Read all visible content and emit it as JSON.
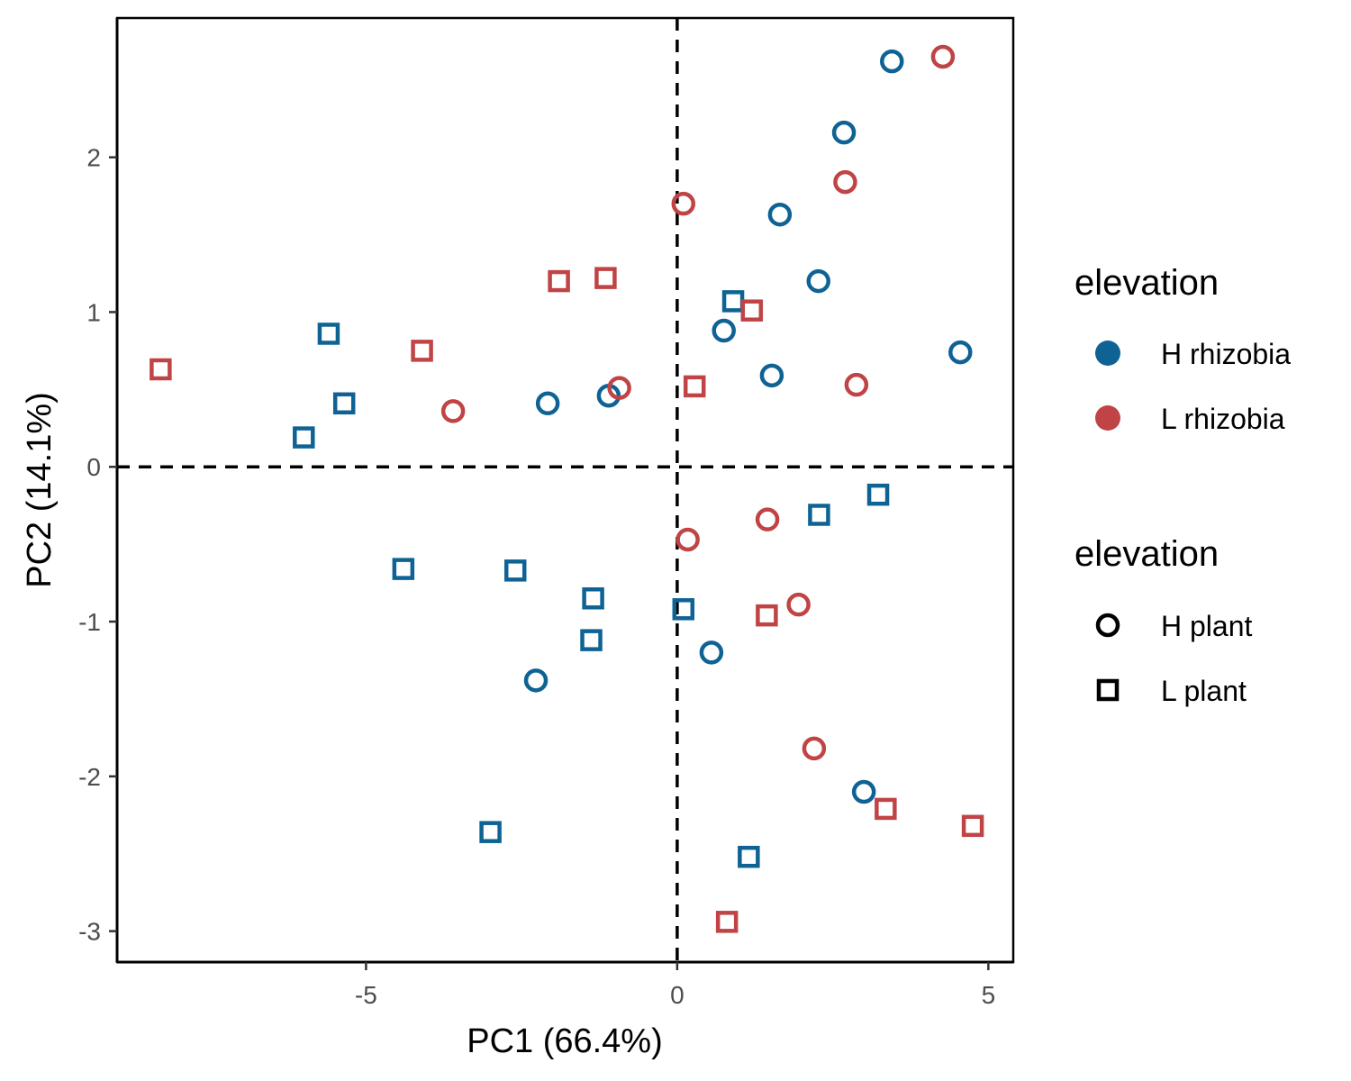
{
  "chart_data": {
    "type": "scatter",
    "xlabel": "PC1 (66.4%)",
    "ylabel": "PC2 (14.1%)",
    "xlim": [
      -9.0,
      5.4
    ],
    "ylim": [
      -3.2,
      2.9
    ],
    "x_ticks": [
      -5,
      0,
      5
    ],
    "y_ticks": [
      -3,
      -2,
      -1,
      0,
      1,
      2
    ],
    "reference_lines": {
      "x": 0,
      "y": 0,
      "style": "dashed"
    },
    "grid": false,
    "legend_placement": "right",
    "colors": {
      "H rhizobia": "#0f6394",
      "L rhizobia": "#c04446"
    },
    "color_legend": {
      "title": "elevation",
      "entries": [
        "H rhizobia",
        "L rhizobia"
      ]
    },
    "shape_legend": {
      "title": "elevation",
      "entries": [
        {
          "label": "H plant",
          "shape": "circle"
        },
        {
          "label": "L plant",
          "shape": "square"
        }
      ]
    },
    "series": [
      {
        "rhizobia": "H rhizobia",
        "plant": "H plant",
        "shape": "circle",
        "color": "#0f6394",
        "points": [
          [
            3.45,
            2.62
          ],
          [
            2.68,
            2.16
          ],
          [
            1.65,
            1.63
          ],
          [
            2.27,
            1.2
          ],
          [
            0.75,
            0.88
          ],
          [
            1.52,
            0.59
          ],
          [
            4.55,
            0.74
          ],
          [
            -2.08,
            0.41
          ],
          [
            -1.1,
            0.46
          ],
          [
            0.55,
            -1.2
          ],
          [
            -2.27,
            -1.38
          ],
          [
            3.0,
            -2.1
          ]
        ]
      },
      {
        "rhizobia": "H rhizobia",
        "plant": "L plant",
        "shape": "square",
        "color": "#0f6394",
        "points": [
          [
            -5.6,
            0.86
          ],
          [
            -5.35,
            0.41
          ],
          [
            -6.0,
            0.19
          ],
          [
            0.9,
            1.07
          ],
          [
            3.23,
            -0.18
          ],
          [
            2.28,
            -0.31
          ],
          [
            -4.4,
            -0.66
          ],
          [
            -2.6,
            -0.67
          ],
          [
            -1.35,
            -0.85
          ],
          [
            -1.38,
            -1.12
          ],
          [
            0.1,
            -0.92
          ],
          [
            -3.0,
            -2.36
          ],
          [
            1.15,
            -2.52
          ]
        ]
      },
      {
        "rhizobia": "L rhizobia",
        "plant": "H plant",
        "shape": "circle",
        "color": "#c04446",
        "points": [
          [
            4.27,
            2.65
          ],
          [
            2.7,
            1.84
          ],
          [
            0.1,
            1.7
          ],
          [
            -0.93,
            0.51
          ],
          [
            -3.6,
            0.36
          ],
          [
            2.88,
            0.53
          ],
          [
            1.45,
            -0.34
          ],
          [
            0.17,
            -0.47
          ],
          [
            1.95,
            -0.89
          ],
          [
            2.2,
            -1.82
          ]
        ]
      },
      {
        "rhizobia": "L rhizobia",
        "plant": "L plant",
        "shape": "square",
        "color": "#c04446",
        "points": [
          [
            -8.3,
            0.63
          ],
          [
            -1.9,
            1.2
          ],
          [
            -1.15,
            1.22
          ],
          [
            1.2,
            1.01
          ],
          [
            -4.1,
            0.75
          ],
          [
            0.28,
            0.52
          ],
          [
            1.44,
            -0.96
          ],
          [
            3.35,
            -2.21
          ],
          [
            4.75,
            -2.32
          ],
          [
            0.8,
            -2.94
          ]
        ]
      }
    ]
  }
}
